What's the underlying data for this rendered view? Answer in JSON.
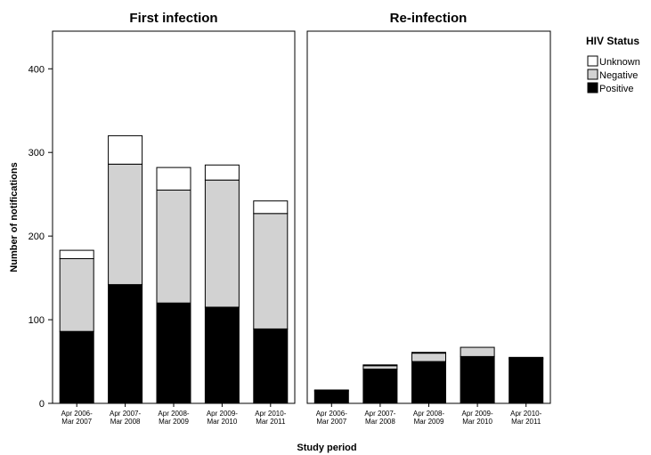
{
  "chart_data": {
    "type": "bar",
    "stacked": true,
    "ylabel": "Number of notifications",
    "xlabel": "Study period",
    "ylim": [
      0,
      445
    ],
    "yticks": [
      0,
      100,
      200,
      300,
      400
    ],
    "categories": [
      [
        "Apr 2006-",
        "Mar 2007"
      ],
      [
        "Apr 2007-",
        "Mar 2008"
      ],
      [
        "Apr 2008-",
        "Mar 2009"
      ],
      [
        "Apr 2009-",
        "Mar 2010"
      ],
      [
        "Apr 2010-",
        "Mar 2011"
      ]
    ],
    "legend": {
      "title": "HIV Status",
      "position": "right",
      "entries": [
        {
          "name": "Unknown",
          "color": "#ffffff"
        },
        {
          "name": "Negative",
          "color": "#d2d2d2"
        },
        {
          "name": "Positive",
          "color": "#000000"
        }
      ]
    },
    "panels": [
      {
        "title": "First infection",
        "series": [
          {
            "name": "Positive",
            "values": [
              86,
              142,
              120,
              115,
              89
            ]
          },
          {
            "name": "Negative",
            "values": [
              87,
              144,
              135,
              152,
              138
            ]
          },
          {
            "name": "Unknown",
            "values": [
              10,
              34,
              27,
              18,
              15
            ]
          }
        ]
      },
      {
        "title": "Re-infection",
        "series": [
          {
            "name": "Positive",
            "values": [
              15,
              41,
              50,
              56,
              53
            ]
          },
          {
            "name": "Negative",
            "values": [
              1,
              4,
              10,
              11,
              1
            ]
          },
          {
            "name": "Unknown",
            "values": [
              0,
              1,
              1,
              0,
              1
            ]
          }
        ]
      }
    ]
  }
}
